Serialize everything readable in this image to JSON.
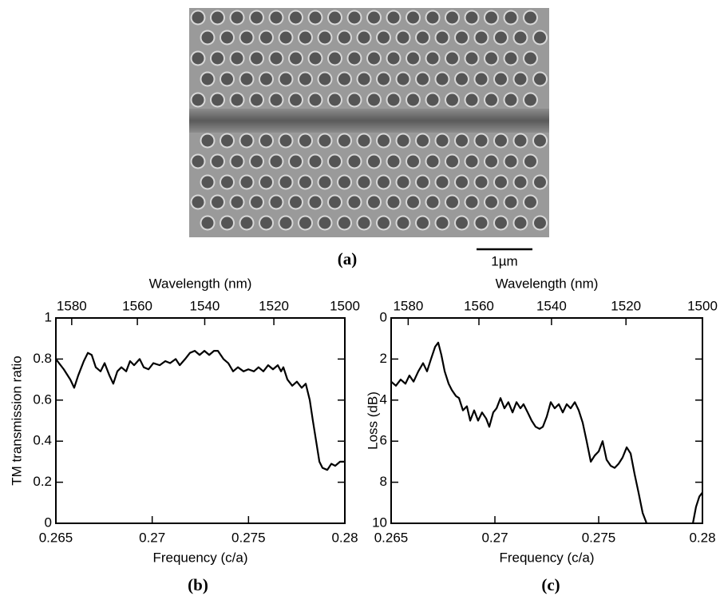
{
  "figure": {
    "panel_label": "(a)",
    "scale_bar": "1µm"
  },
  "chart_data": [
    {
      "type": "line",
      "panel_label": "(b)",
      "x_label": "Frequency (c/a)",
      "y_label": "TM transmission ratio",
      "x2_label": "Wavelength (nm)",
      "xlim": [
        0.265,
        0.28
      ],
      "xticks": [
        0.265,
        0.27,
        0.275,
        0.28
      ],
      "ylim": [
        0,
        1
      ],
      "yticks": [
        0,
        0.2,
        0.4,
        0.6,
        0.8,
        1
      ],
      "x2scale": "reciprocal",
      "x2lim": [
        1584.9,
        1500
      ],
      "x2ticks": [
        1580,
        1560,
        1540,
        1520,
        1500
      ],
      "color": "#000000",
      "x": [
        0.265,
        0.26541,
        0.26575,
        0.26595,
        0.26616,
        0.26645,
        0.26666,
        0.26686,
        0.26707,
        0.26732,
        0.26753,
        0.26778,
        0.26798,
        0.26819,
        0.2684,
        0.26865,
        0.26885,
        0.26906,
        0.26935,
        0.26956,
        0.26981,
        0.27006,
        0.27039,
        0.27068,
        0.27093,
        0.27122,
        0.27143,
        0.27171,
        0.27196,
        0.27221,
        0.27246,
        0.27271,
        0.27296,
        0.27321,
        0.27341,
        0.2737,
        0.27395,
        0.2742,
        0.27445,
        0.27474,
        0.27499,
        0.27528,
        0.27552,
        0.27577,
        0.27602,
        0.27627,
        0.27652,
        0.27669,
        0.27681,
        0.27702,
        0.27727,
        0.27751,
        0.27776,
        0.27797,
        0.27818,
        0.27834,
        0.27851,
        0.27868,
        0.27884,
        0.27909,
        0.2793,
        0.2795,
        0.27975,
        0.28
      ],
      "values": [
        0.8,
        0.75,
        0.7,
        0.66,
        0.72,
        0.79,
        0.83,
        0.82,
        0.76,
        0.74,
        0.78,
        0.72,
        0.68,
        0.74,
        0.76,
        0.74,
        0.79,
        0.77,
        0.8,
        0.76,
        0.75,
        0.78,
        0.77,
        0.79,
        0.78,
        0.8,
        0.77,
        0.8,
        0.83,
        0.84,
        0.82,
        0.84,
        0.82,
        0.84,
        0.84,
        0.8,
        0.78,
        0.74,
        0.76,
        0.74,
        0.75,
        0.74,
        0.76,
        0.74,
        0.77,
        0.75,
        0.77,
        0.74,
        0.76,
        0.7,
        0.67,
        0.69,
        0.66,
        0.68,
        0.6,
        0.5,
        0.4,
        0.3,
        0.27,
        0.26,
        0.29,
        0.28,
        0.3,
        0.3
      ]
    },
    {
      "type": "line",
      "panel_label": "(c)",
      "x_label": "Frequency (c/a)",
      "y_label": "Loss (dB)",
      "x2_label": "Wavelength (nm)",
      "xlim": [
        0.265,
        0.28
      ],
      "xticks": [
        0.265,
        0.27,
        0.275,
        0.28
      ],
      "ylim": [
        10,
        0
      ],
      "yticks": [
        0,
        2,
        4,
        6,
        8,
        10
      ],
      "x2scale": "reciprocal",
      "x2lim": [
        1584.9,
        1500
      ],
      "x2ticks": [
        1580,
        1560,
        1540,
        1520,
        1500
      ],
      "color": "#000000",
      "x": [
        0.265,
        0.26523,
        0.26546,
        0.26569,
        0.26588,
        0.26608,
        0.26631,
        0.26654,
        0.26673,
        0.26692,
        0.26712,
        0.26727,
        0.26742,
        0.26758,
        0.26777,
        0.26792,
        0.26812,
        0.26827,
        0.26846,
        0.26865,
        0.26881,
        0.269,
        0.26919,
        0.26938,
        0.26958,
        0.26973,
        0.26992,
        0.27008,
        0.27027,
        0.27046,
        0.27065,
        0.27085,
        0.27104,
        0.27123,
        0.27138,
        0.27158,
        0.27177,
        0.27196,
        0.27215,
        0.27231,
        0.2725,
        0.27269,
        0.27288,
        0.27308,
        0.27327,
        0.27346,
        0.27365,
        0.27385,
        0.27404,
        0.27423,
        0.27442,
        0.27462,
        0.27481,
        0.275,
        0.27519,
        0.27538,
        0.27558,
        0.27577,
        0.27596,
        0.27615,
        0.27635,
        0.27654,
        0.27673,
        0.27692,
        0.27712,
        0.27731,
        0.278,
        0.27954,
        0.27969,
        0.27985,
        0.28
      ],
      "values": [
        3.1,
        3.3,
        3.0,
        3.2,
        2.8,
        3.1,
        2.6,
        2.2,
        2.6,
        2.0,
        1.4,
        1.2,
        1.8,
        2.6,
        3.2,
        3.5,
        3.8,
        3.9,
        4.5,
        4.3,
        5.0,
        4.5,
        5.0,
        4.6,
        4.9,
        5.3,
        4.6,
        4.4,
        3.9,
        4.4,
        4.1,
        4.6,
        4.1,
        4.4,
        4.2,
        4.6,
        5.0,
        5.3,
        5.4,
        5.3,
        4.8,
        4.1,
        4.4,
        4.2,
        4.6,
        4.2,
        4.4,
        4.1,
        4.5,
        5.1,
        6.0,
        7.0,
        6.7,
        6.5,
        6.0,
        6.9,
        7.2,
        7.3,
        7.1,
        6.8,
        6.3,
        6.6,
        7.6,
        8.5,
        9.5,
        10.0,
        null,
        10.0,
        9.2,
        8.7,
        8.5
      ]
    }
  ]
}
